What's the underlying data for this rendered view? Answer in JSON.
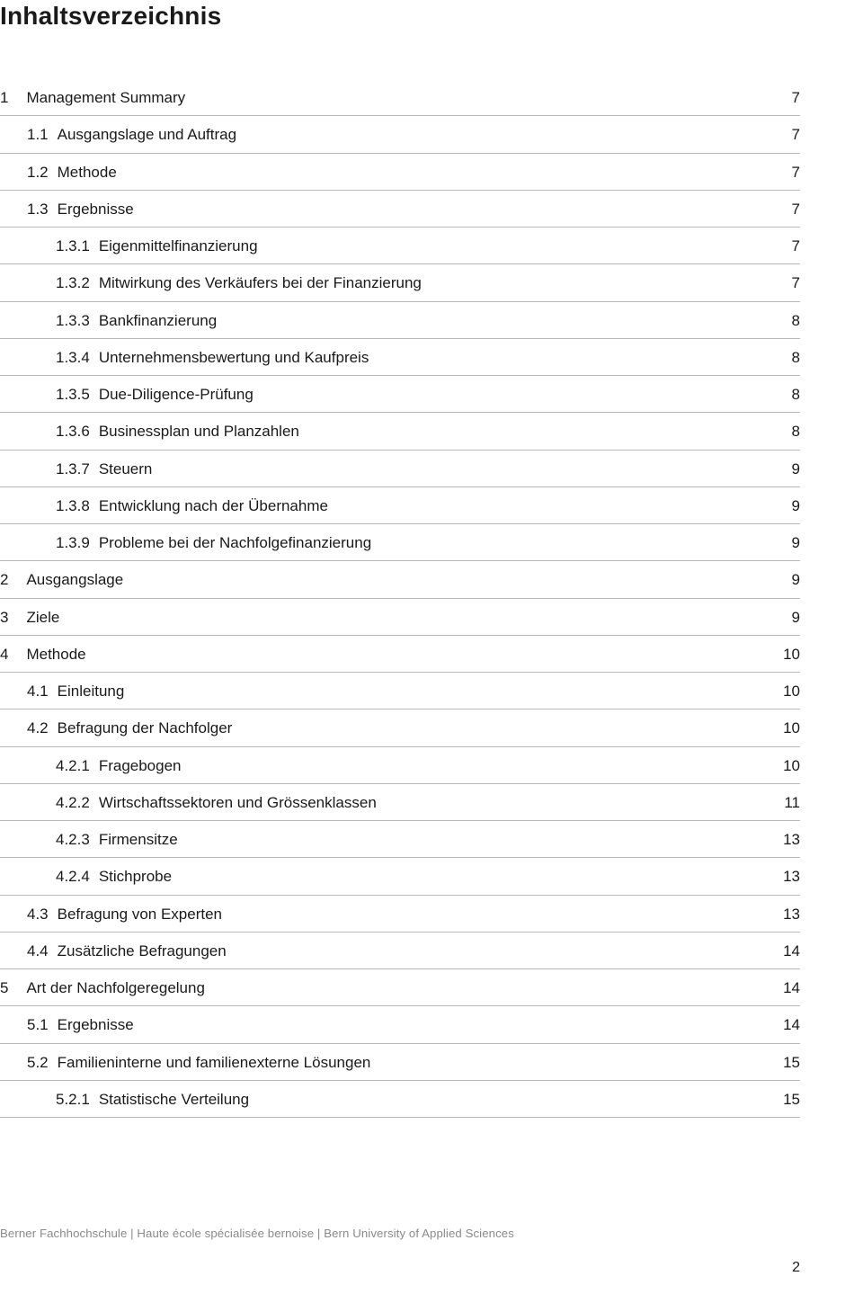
{
  "title": "Inhaltsverzeichnis",
  "text_color": "#1a1a1a",
  "border_color": "#b9b9b9",
  "footer_color": "#8a8a8a",
  "background": "#ffffff",
  "toc": [
    {
      "level": 0,
      "num": "1",
      "label": "Management Summary",
      "page": "7"
    },
    {
      "level": 1,
      "num": "1.1",
      "label": "Ausgangslage und Auftrag",
      "page": "7"
    },
    {
      "level": 1,
      "num": "1.2",
      "label": "Methode",
      "page": "7"
    },
    {
      "level": 1,
      "num": "1.3",
      "label": "Ergebnisse",
      "page": "7"
    },
    {
      "level": 2,
      "num": "1.3.1",
      "label": "Eigenmittelfinanzierung",
      "page": "7"
    },
    {
      "level": 2,
      "num": "1.3.2",
      "label": "Mitwirkung des Verkäufers bei der Finanzierung",
      "page": "7"
    },
    {
      "level": 2,
      "num": "1.3.3",
      "label": "Bankfinanzierung",
      "page": "8"
    },
    {
      "level": 2,
      "num": "1.3.4",
      "label": "Unternehmensbewertung und Kaufpreis",
      "page": "8"
    },
    {
      "level": 2,
      "num": "1.3.5",
      "label": "Due-Diligence-Prüfung",
      "page": "8"
    },
    {
      "level": 2,
      "num": "1.3.6",
      "label": "Businessplan und Planzahlen",
      "page": "8"
    },
    {
      "level": 2,
      "num": "1.3.7",
      "label": "Steuern",
      "page": "9"
    },
    {
      "level": 2,
      "num": "1.3.8",
      "label": "Entwicklung nach der Übernahme",
      "page": "9"
    },
    {
      "level": 2,
      "num": "1.3.9",
      "label": "Probleme bei der Nachfolgefinanzierung",
      "page": "9"
    },
    {
      "level": 0,
      "num": "2",
      "label": "Ausgangslage",
      "page": "9"
    },
    {
      "level": 0,
      "num": "3",
      "label": "Ziele",
      "page": "9"
    },
    {
      "level": 0,
      "num": "4",
      "label": "Methode",
      "page": "10"
    },
    {
      "level": 1,
      "num": "4.1",
      "label": "Einleitung",
      "page": "10"
    },
    {
      "level": 1,
      "num": "4.2",
      "label": "Befragung der Nachfolger",
      "page": "10"
    },
    {
      "level": 2,
      "num": "4.2.1",
      "label": "Fragebogen",
      "page": "10"
    },
    {
      "level": 2,
      "num": "4.2.2",
      "label": "Wirtschaftssektoren und Grössenklassen",
      "page": "11"
    },
    {
      "level": 2,
      "num": "4.2.3",
      "label": "Firmensitze",
      "page": "13"
    },
    {
      "level": 2,
      "num": "4.2.4",
      "label": "Stichprobe",
      "page": "13"
    },
    {
      "level": 1,
      "num": "4.3",
      "label": "Befragung von Experten",
      "page": "13"
    },
    {
      "level": 1,
      "num": "4.4",
      "label": "Zusätzliche Befragungen",
      "page": "14"
    },
    {
      "level": 0,
      "num": "5",
      "label": "Art der Nachfolgeregelung",
      "page": "14"
    },
    {
      "level": 1,
      "num": "5.1",
      "label": "Ergebnisse",
      "page": "14"
    },
    {
      "level": 1,
      "num": "5.2",
      "label": "Familieninterne und familienexterne Lösungen",
      "page": "15"
    },
    {
      "level": 2,
      "num": "5.2.1",
      "label": "Statistische Verteilung",
      "page": "15"
    }
  ],
  "footer": {
    "text": "Berner Fachhochschule | Haute école spécialisée bernoise | Bern University of Applied Sciences",
    "page_number": "2"
  }
}
